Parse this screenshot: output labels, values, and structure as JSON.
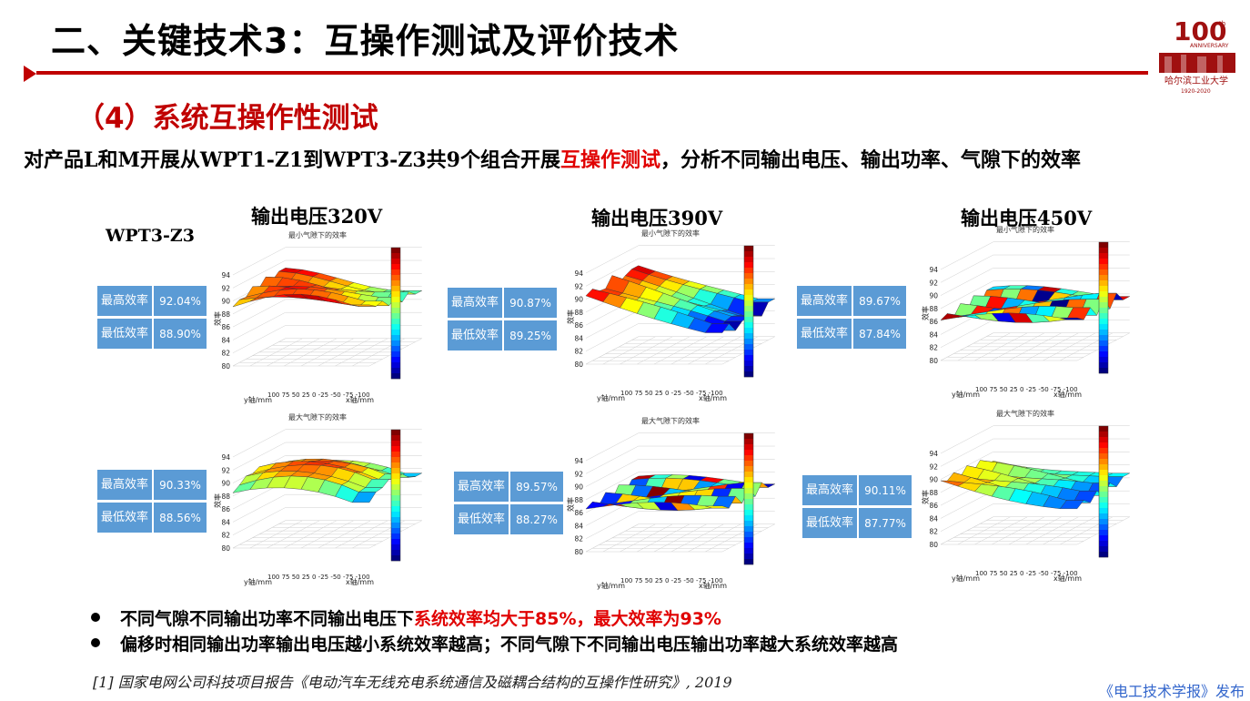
{
  "header": {
    "title": "二、关键技术3：互操作测试及评价技术"
  },
  "logo": {
    "number": "100",
    "suffix": "th",
    "word": "ANNIVERSARY",
    "school": "哈尔滨工业大学",
    "years": "1920-2020"
  },
  "section": {
    "title": "（4）系统互操作性测试"
  },
  "intro": {
    "before": "对产品L和M开展从WPT1-Z1到WPT3-Z3共9个组合开展",
    "highlight": "互操作测试",
    "after": "，分析不同输出电压、输出功率、气隙下的效率"
  },
  "case_label": "WPT3-Z3",
  "columns": [
    "输出电压320V",
    "输出电压390V",
    "输出电压450V"
  ],
  "stat_labels": {
    "max": "最高效率",
    "min": "最低效率"
  },
  "plot_text": {
    "min_gap_title": "最小气隙下的效率",
    "max_gap_title": "最大气隙下的效率",
    "ylabel": "效率",
    "x_axis": "x轴/mm",
    "y_axis": "y轴/mm",
    "z_ticks": [
      "94",
      "92",
      "90",
      "88",
      "86",
      "84",
      "82",
      "80"
    ],
    "xy_ticks": "100 75 50 25 0 -25 -50 -75 -100"
  },
  "panels": [
    {
      "max": "92.04%",
      "min": "88.90%"
    },
    {
      "max": "90.87%",
      "min": "89.25%"
    },
    {
      "max": "89.67%",
      "min": "87.84%"
    },
    {
      "max": "90.33%",
      "min": "88.56%"
    },
    {
      "max": "89.57%",
      "min": "88.27%"
    },
    {
      "max": "90.11%",
      "min": "87.77%"
    }
  ],
  "bullets": {
    "b1_before": "不同气隙不同输出功率不同输出电压下",
    "b1_highlight": "系统效率均大于85%，最大效率为93%",
    "b2": "偏移时相同输出功率输出电压越小系统效率越高；不同气隙下不同输出电压输出功率越大系统效率越高"
  },
  "reference": "[1] 国家电网公司科技项目报告《电动汽车无线充电系统通信及磁耦合结构的互操作性研究》, 2019",
  "publisher": "《电工技术学报》发布",
  "colors": {
    "accent": "#c00000",
    "highlight": "#e00000",
    "stat_box": "#5b9bd5"
  }
}
